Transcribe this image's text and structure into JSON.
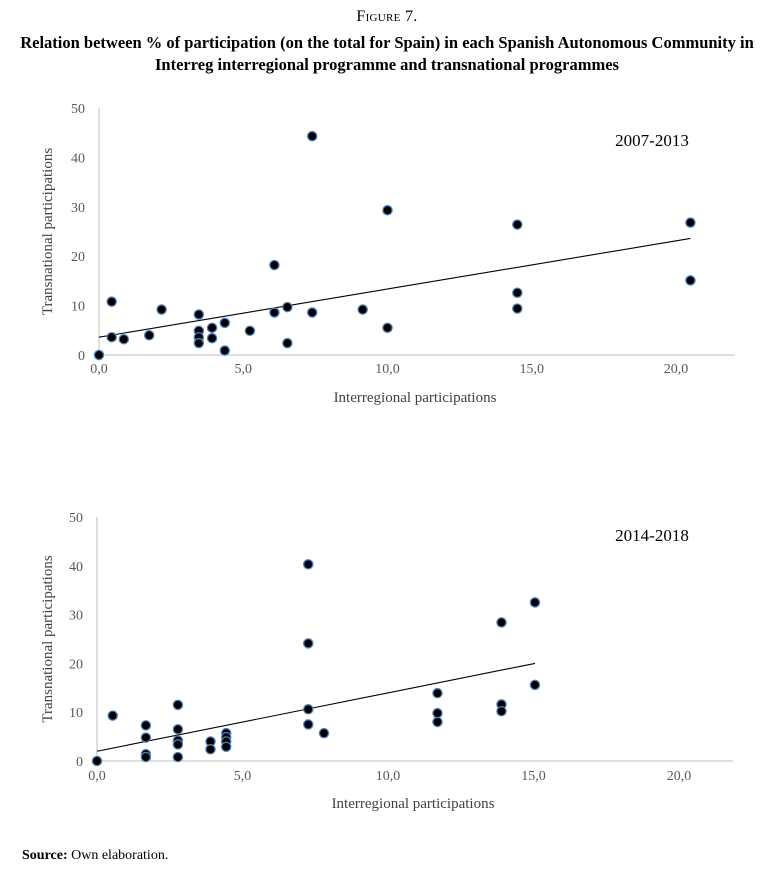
{
  "figure_label": "Figure 7.",
  "figure_title": "Relation between % of participation (on the total for Spain) in each Spanish Autonomous Community in Interreg interregional programme and transnational programmes",
  "source": {
    "label": "Source:",
    "text": " Own elaboration."
  },
  "colors": {
    "point_fill": "#000000",
    "point_outline": "#4f81bd",
    "axis": "#bfbfbf",
    "tick_text": "#595959",
    "trendline": "#000000"
  },
  "chart_data": [
    {
      "type": "scatter",
      "annotation": "2007-2013",
      "xlabel": "Interregional participations",
      "ylabel": "Transnational participations",
      "xlim": [
        0,
        22
      ],
      "ylim": [
        0,
        50
      ],
      "x_ticks": [
        "0,0",
        "5,0",
        "10,0",
        "15,0",
        "20,0"
      ],
      "x_tick_values": [
        0,
        5,
        10,
        15,
        20
      ],
      "y_ticks": [
        "0",
        "10",
        "20",
        "30",
        "40",
        "50"
      ],
      "y_tick_values": [
        0,
        10,
        20,
        30,
        40,
        50
      ],
      "grid": false,
      "trendline": {
        "type": "linear",
        "from": [
          0,
          3.6
        ],
        "to": [
          20.5,
          23.6
        ]
      },
      "points": [
        [
          0,
          0
        ],
        [
          0.44,
          10.8
        ],
        [
          0.44,
          3.6
        ],
        [
          0.86,
          3.2
        ],
        [
          1.74,
          4.0
        ],
        [
          2.17,
          9.2
        ],
        [
          3.46,
          8.2
        ],
        [
          3.46,
          4.9
        ],
        [
          3.46,
          3.6
        ],
        [
          3.46,
          2.4
        ],
        [
          3.92,
          5.5
        ],
        [
          3.92,
          3.4
        ],
        [
          4.36,
          6.5
        ],
        [
          4.36,
          0.9
        ],
        [
          5.23,
          4.9
        ],
        [
          6.08,
          18.2
        ],
        [
          6.08,
          8.6
        ],
        [
          6.53,
          9.7
        ],
        [
          6.53,
          2.4
        ],
        [
          7.39,
          44.3
        ],
        [
          7.39,
          8.6
        ],
        [
          9.14,
          9.2
        ],
        [
          10.0,
          29.3
        ],
        [
          10.0,
          5.5
        ],
        [
          14.5,
          26.4
        ],
        [
          14.5,
          12.6
        ],
        [
          14.5,
          9.4
        ],
        [
          20.5,
          26.8
        ],
        [
          20.5,
          15.1
        ]
      ]
    },
    {
      "type": "scatter",
      "annotation": "2014-2018",
      "xlabel": "Interregional participations",
      "ylabel": "Transnational participations",
      "xlim": [
        0,
        22
      ],
      "ylim": [
        0,
        50
      ],
      "x_ticks": [
        "0,0",
        "5,0",
        "10,0",
        "15,0",
        "20,0"
      ],
      "x_tick_values": [
        0,
        5,
        10,
        15,
        20
      ],
      "y_ticks": [
        "0",
        "10",
        "20",
        "30",
        "40",
        "50"
      ],
      "y_tick_values": [
        0,
        10,
        20,
        30,
        40,
        50
      ],
      "grid": false,
      "trendline": {
        "type": "linear",
        "from": [
          0,
          2.0
        ],
        "to": [
          15.05,
          20.0
        ]
      },
      "points": [
        [
          0,
          0
        ],
        [
          0.54,
          9.3
        ],
        [
          1.68,
          7.3
        ],
        [
          1.68,
          4.8
        ],
        [
          1.68,
          1.4
        ],
        [
          1.68,
          0.8
        ],
        [
          2.78,
          11.5
        ],
        [
          2.78,
          6.5
        ],
        [
          2.78,
          4.2
        ],
        [
          2.78,
          3.4
        ],
        [
          2.78,
          0.8
        ],
        [
          3.9,
          4.0
        ],
        [
          3.9,
          2.4
        ],
        [
          4.44,
          5.7
        ],
        [
          4.44,
          4.9
        ],
        [
          4.44,
          4.0
        ],
        [
          4.44,
          2.9
        ],
        [
          7.26,
          40.3
        ],
        [
          7.26,
          24.1
        ],
        [
          7.26,
          10.6
        ],
        [
          7.26,
          7.5
        ],
        [
          7.8,
          5.7
        ],
        [
          11.7,
          13.9
        ],
        [
          11.7,
          9.8
        ],
        [
          11.7,
          8.0
        ],
        [
          13.9,
          28.4
        ],
        [
          13.9,
          11.6
        ],
        [
          13.9,
          10.2
        ],
        [
          15.05,
          32.5
        ],
        [
          15.05,
          15.6
        ]
      ]
    }
  ]
}
